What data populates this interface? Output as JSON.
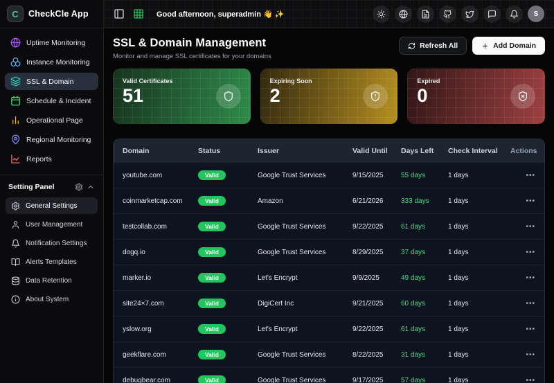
{
  "app": {
    "title": "CheckCle App",
    "logo_letter": "C"
  },
  "topbar": {
    "greeting": "Good afternoon, superadmin 👋 ✨",
    "left_icons": [
      {
        "name": "panel-left-icon",
        "icon": "panel-left",
        "color": "#d4d4d8"
      },
      {
        "name": "grid-icon",
        "icon": "grid",
        "color": "#22c55e"
      }
    ],
    "right_icons": [
      {
        "name": "theme-toggle-icon",
        "icon": "sun"
      },
      {
        "name": "language-globe-icon",
        "icon": "globe"
      },
      {
        "name": "docs-icon",
        "icon": "file-text"
      },
      {
        "name": "github-icon",
        "icon": "github"
      },
      {
        "name": "twitter-icon",
        "icon": "twitter"
      },
      {
        "name": "feedback-icon",
        "icon": "message-square"
      },
      {
        "name": "notifications-bell-icon",
        "icon": "bell"
      }
    ],
    "avatar_initial": "S"
  },
  "sidebar": {
    "nav": [
      {
        "label": "Uptime Monitoring",
        "icon": "globe",
        "color": "#a855f7",
        "active": false
      },
      {
        "label": "Instance Monitoring",
        "icon": "boxes",
        "color": "#60a5fa",
        "active": false
      },
      {
        "label": "SSL & Domain",
        "icon": "layers",
        "color": "#2dd4bf",
        "active": true
      },
      {
        "label": "Schedule & Incident",
        "icon": "calendar",
        "color": "#4ade80",
        "active": false
      },
      {
        "label": "Operational Page",
        "icon": "bar-chart",
        "color": "#eab308",
        "active": false
      },
      {
        "label": "Regional Monitoring",
        "icon": "map-pin",
        "color": "#818cf8",
        "active": false
      },
      {
        "label": "Reports",
        "icon": "line-chart",
        "color": "#f87171",
        "active": false
      }
    ],
    "settings": {
      "header": "Setting Panel",
      "items": [
        {
          "label": "General Settings",
          "icon": "gear",
          "active": true
        },
        {
          "label": "User Management",
          "icon": "user",
          "active": false
        },
        {
          "label": "Notification Settings",
          "icon": "bell",
          "active": false
        },
        {
          "label": "Alerts Templates",
          "icon": "book-open",
          "active": false
        },
        {
          "label": "Data Retention",
          "icon": "database",
          "active": false
        },
        {
          "label": "About System",
          "icon": "info",
          "active": false
        }
      ]
    }
  },
  "page": {
    "title": "SSL & Domain Management",
    "subtitle": "Monitor and manage SSL certificates for your domains",
    "refresh_label": "Refresh All",
    "add_label": "Add Domain"
  },
  "stats": [
    {
      "label": "Valid Certificates",
      "value": "51",
      "icon": "shield",
      "from": "#17331f",
      "to": "#2f8b4a"
    },
    {
      "label": "Expiring Soon",
      "value": "2",
      "icon": "shield-alert",
      "from": "#33290f",
      "to": "#b58f20"
    },
    {
      "label": "Expired",
      "value": "0",
      "icon": "shield-x",
      "from": "#321616",
      "to": "#9e4040"
    }
  ],
  "table": {
    "columns": [
      "Domain",
      "Status",
      "Issuer",
      "Valid Until",
      "Days Left",
      "Check Interval",
      "Actions"
    ],
    "colors": {
      "badge": "#22c55e",
      "days_left": "#4ade80"
    },
    "rows": [
      {
        "domain": "youtube.com",
        "status": "Valid",
        "issuer": "Google Trust Services",
        "valid_until": "9/15/2025",
        "days_left": "55 days",
        "check_interval": "1 days"
      },
      {
        "domain": "coinmarketcap.com",
        "status": "Valid",
        "issuer": "Amazon",
        "valid_until": "6/21/2026",
        "days_left": "333 days",
        "check_interval": "1 days"
      },
      {
        "domain": "testcollab.com",
        "status": "Valid",
        "issuer": "Google Trust Services",
        "valid_until": "9/22/2025",
        "days_left": "61 days",
        "check_interval": "1 days"
      },
      {
        "domain": "dogq.io",
        "status": "Valid",
        "issuer": "Google Trust Services",
        "valid_until": "8/29/2025",
        "days_left": "37 days",
        "check_interval": "1 days"
      },
      {
        "domain": "marker.io",
        "status": "Valid",
        "issuer": "Let's Encrypt",
        "valid_until": "9/9/2025",
        "days_left": "49 days",
        "check_interval": "1 days"
      },
      {
        "domain": "site24×7.com",
        "status": "Valid",
        "issuer": "DigiCert Inc",
        "valid_until": "9/21/2025",
        "days_left": "60 days",
        "check_interval": "1 days"
      },
      {
        "domain": "yslow.org",
        "status": "Valid",
        "issuer": "Let's Encrypt",
        "valid_until": "9/22/2025",
        "days_left": "61 days",
        "check_interval": "1 days"
      },
      {
        "domain": "geekflare.com",
        "status": "Valid",
        "issuer": "Google Trust Services",
        "valid_until": "8/22/2025",
        "days_left": "31 days",
        "check_interval": "1 days"
      },
      {
        "domain": "debugbear.com",
        "status": "Valid",
        "issuer": "Google Trust Services",
        "valid_until": "9/17/2025",
        "days_left": "57 days",
        "check_interval": "1 days"
      }
    ]
  }
}
